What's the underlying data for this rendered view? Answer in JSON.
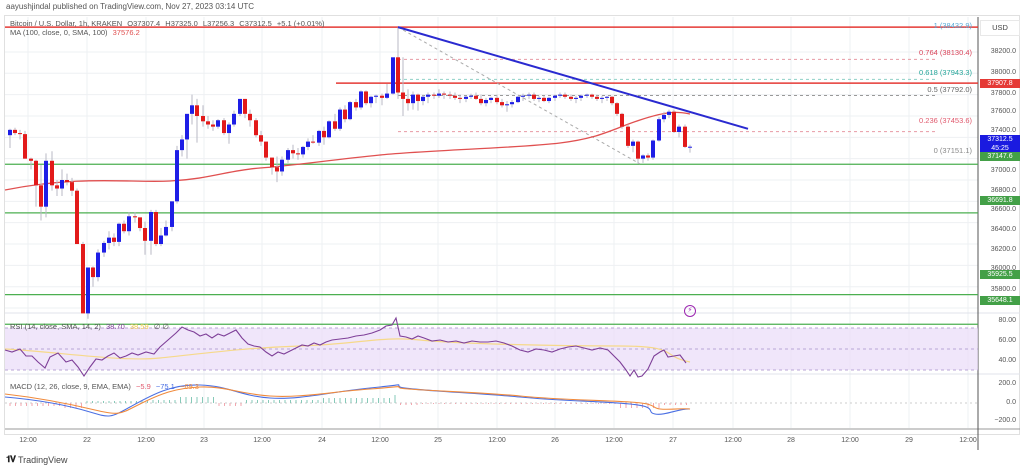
{
  "header": {
    "publish_line": "aayushjindal published on TradingView.com, Nov 27, 2023 03:14 UTC",
    "symbol": "Bitcoin / U.S. Dollar, 1h, KRAKEN",
    "ohlc": {
      "open": "O37307.4",
      "high": "H37325.0",
      "low": "L37256.3",
      "close": "C37312.5",
      "change": "+5.1 (+0.01%)"
    },
    "ma_label": "MA (100, close, 0, SMA, 100)",
    "ma_value": "37576.2"
  },
  "price_axis": {
    "currency": "USD",
    "ticks": [
      "38200.0",
      "38000.0",
      "37800.0",
      "37600.0",
      "37400.0",
      "37000.0",
      "36800.0",
      "36600.0",
      "36400.0",
      "36200.0",
      "36000.0",
      "35800.0"
    ],
    "current_price_tag": "37312.5",
    "countdown_tag": "45:25",
    "red_tag": "37907.8",
    "green_tags": [
      "37147.6",
      "36691.8",
      "35925.5",
      "35648.1"
    ]
  },
  "fibonacci": [
    {
      "label": "1 (38432.9)",
      "color": "#5aaad8"
    },
    {
      "label": "0.764 (38130.4)",
      "color": "#d9465b"
    },
    {
      "label": "0.618 (37943.3)",
      "color": "#26a69a"
    },
    {
      "label": "0.5 (37792.0)",
      "color": "#666666"
    },
    {
      "label": "0.236 (37453.6)",
      "color": "#e05a6e"
    },
    {
      "label": "0 (37151.1)",
      "color": "#888888"
    }
  ],
  "rsi": {
    "label": "RSI (14, close, SMA, 14, 2)",
    "value": "38.70",
    "sma_value": "38.59",
    "extra": "∅ ∅",
    "ticks": [
      "80.00",
      "60.00",
      "40.00"
    ]
  },
  "macd": {
    "label": "MACD (12, 26, close, 9, EMA, EMA)",
    "histogram": "−5.9",
    "macd": "−75.1",
    "signal": "−69.3",
    "ticks": [
      "200.0",
      "0.0",
      "−200.0"
    ]
  },
  "time_axis": [
    "12:00",
    "22",
    "12:00",
    "23",
    "12:00",
    "24",
    "12:00",
    "25",
    "12:00",
    "26",
    "12:00",
    "27",
    "12:00",
    "28",
    "12:00",
    "29",
    "12:00"
  ],
  "footer": {
    "brand": "TradingView"
  },
  "colors": {
    "up_candle": "#1e1ee6",
    "down_candle": "#e21a1a",
    "ma_line": "#e05050",
    "trend_line": "#2a2ad0",
    "support": "#4caf50",
    "resistance": "#e53935",
    "rsi_line": "#7e3f98",
    "rsi_band": "#eadcf8",
    "macd_line": "#4a6fe3",
    "signal_line": "#f08a3c"
  },
  "chart_data": {
    "type": "candlestick",
    "title": "Bitcoin / U.S. Dollar, 1h, KRAKEN",
    "ylabel": "USD",
    "ylim": [
      35550,
      38500
    ],
    "x_range": "Nov 21 12:00 – Nov 29 12:00",
    "last_close": 37312.5,
    "ma100": 37576.2,
    "horizontal_levels": {
      "resistance": [
        38432.9,
        37907.8
      ],
      "support": [
        37147.6,
        36691.8,
        35925.5,
        35648.1
      ]
    },
    "fib_levels": {
      "1": 38432.9,
      "0.764": 38130.4,
      "0.618": 37943.3,
      "0.5": 37792.0,
      "0.236": 37453.6,
      "0": 37151.1
    },
    "trend_line": {
      "from": {
        "time": "Nov 24 ~06:00",
        "price": 38432.9
      },
      "to": {
        "time": "Nov 27 ~12:00",
        "price": 37480
      }
    },
    "indicators": {
      "rsi": {
        "params": "14, close, SMA, 14, 2",
        "value": 38.7,
        "sma": 38.59,
        "ticks": [
          80,
          60,
          40
        ]
      },
      "macd": {
        "params": "12, 26, close, 9, EMA, EMA",
        "hist": -5.9,
        "macd": -75.1,
        "signal": -69.3,
        "ticks": [
          200,
          0,
          -200
        ]
      }
    },
    "legend_position": "top-left",
    "grid": true
  }
}
